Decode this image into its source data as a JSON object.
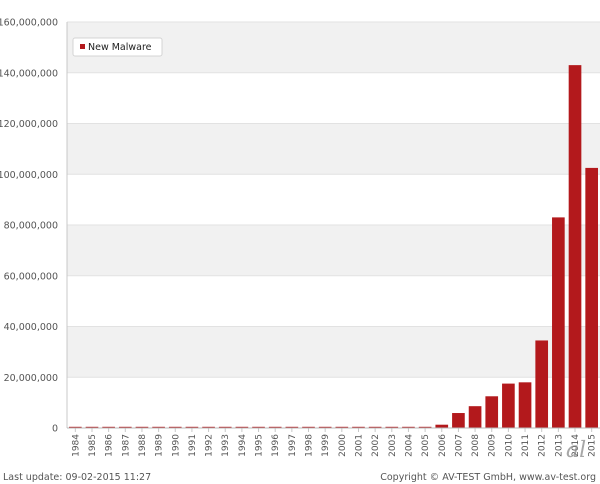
{
  "chart_data": {
    "type": "bar",
    "categories": [
      "1984",
      "1985",
      "1986",
      "1987",
      "1988",
      "1989",
      "1990",
      "1991",
      "1992",
      "1993",
      "1994",
      "1995",
      "1996",
      "1997",
      "1998",
      "1999",
      "2000",
      "2001",
      "2002",
      "2003",
      "2004",
      "2005",
      "2006",
      "2007",
      "2008",
      "2009",
      "2010",
      "2011",
      "2012",
      "2013",
      "2014",
      "2015"
    ],
    "series": [
      {
        "name": "New Malware",
        "values": [
          150000,
          150000,
          150000,
          150000,
          150000,
          150000,
          150000,
          150000,
          150000,
          150000,
          150000,
          150000,
          150000,
          200000,
          250000,
          200000,
          250000,
          250000,
          250000,
          250000,
          250000,
          400000,
          1300000,
          5900000,
          8600000,
          12500000,
          17500000,
          18000000,
          34500000,
          83000000,
          143000000,
          102500000
        ]
      }
    ],
    "ylim": [
      0,
      160000000
    ],
    "yticks": [
      "0",
      "20,000,000",
      "40,000,000",
      "60,000,000",
      "80,000,000",
      "100,000,000",
      "120,000,000",
      "140,000,000",
      "160,000,000"
    ],
    "ytick_values": [
      0,
      20000000,
      40000000,
      60000000,
      80000000,
      100000000,
      120000000,
      140000000,
      160000000
    ],
    "legend_position": "top-left",
    "grid": true,
    "bar_color": "#b3191c"
  },
  "footer": {
    "last_update": "Last update: 09-02-2015 11:27",
    "copyright": "Copyright © AV-TEST GmbH, www.av-test.org"
  },
  "watermark": {
    "text": "al"
  }
}
